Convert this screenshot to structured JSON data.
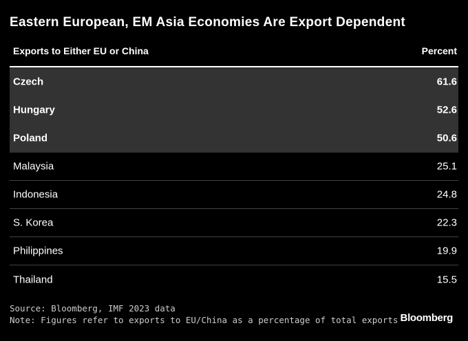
{
  "title": "Eastern European, EM Asia Economies Are Export Dependent",
  "table": {
    "columns": [
      "Exports to Either EU or China",
      "Percent"
    ],
    "rows": [
      [
        "Czech",
        61.6
      ],
      [
        "Hungary",
        52.6
      ],
      [
        "Poland",
        50.6
      ],
      [
        "Malaysia",
        25.1
      ],
      [
        "Indonesia",
        24.8
      ],
      [
        "S. Korea",
        22.3
      ],
      [
        "Philippines",
        19.9
      ],
      [
        "Thailand",
        15.5
      ]
    ]
  },
  "source": "Source: Bloomberg, IMF 2023 data",
  "note": "Note: Figures refer to exports to EU/China as a percentage of total exports",
  "brand": "Bloomberg"
}
